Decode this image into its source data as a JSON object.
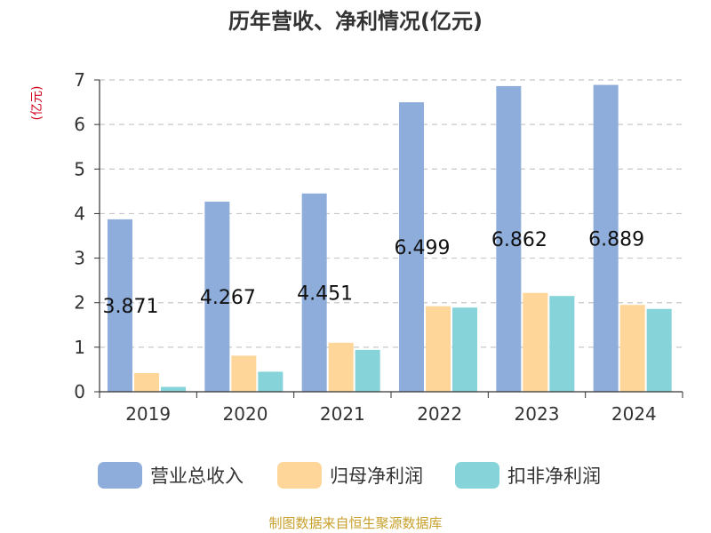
{
  "chart_data": {
    "type": "bar",
    "title": "历年营收、净利情况(亿元)",
    "unit_label": "(亿元)",
    "categories": [
      "2019",
      "2020",
      "2021",
      "2022",
      "2023",
      "2024"
    ],
    "series": [
      {
        "name": "营业总收入",
        "color": "#8eaddb",
        "values": [
          3.871,
          4.267,
          4.451,
          6.499,
          6.862,
          6.889
        ]
      },
      {
        "name": "归母净利润",
        "color": "#ffd699",
        "values": [
          0.42,
          0.81,
          1.1,
          1.92,
          2.22,
          1.95
        ]
      },
      {
        "name": "扣非净利润",
        "color": "#86d4d9",
        "values": [
          0.11,
          0.45,
          0.94,
          1.89,
          2.15,
          1.86
        ]
      }
    ],
    "data_labels": [
      "3.871",
      "4.267",
      "4.451",
      "6.499",
      "6.862",
      "6.889"
    ],
    "ylim": [
      0,
      7
    ],
    "yticks": [
      "0",
      "1",
      "2",
      "3",
      "4",
      "5",
      "6",
      "7"
    ],
    "grid": true,
    "legend_position": "bottom"
  },
  "source": "制图数据来自恒生聚源数据库"
}
